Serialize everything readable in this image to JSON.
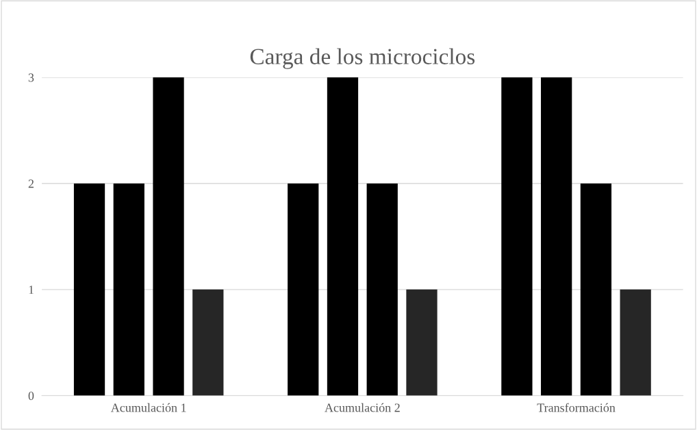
{
  "chart_data": {
    "type": "bar",
    "title": "Carga de los microciclos",
    "categories": [
      "Acumulación 1",
      "Acumulación 2",
      "Transformación"
    ],
    "series": [
      {
        "color": "#000000",
        "values": [
          2,
          2,
          3
        ]
      },
      {
        "color": "#000000",
        "values": [
          2,
          3,
          3
        ]
      },
      {
        "color": "#000000",
        "values": [
          3,
          2,
          2
        ]
      },
      {
        "color": "#262626",
        "values": [
          1,
          1,
          1
        ]
      }
    ],
    "ylim": [
      0,
      3
    ],
    "yticks": [
      0,
      1,
      2,
      3
    ],
    "grid": "y",
    "legend": false
  }
}
